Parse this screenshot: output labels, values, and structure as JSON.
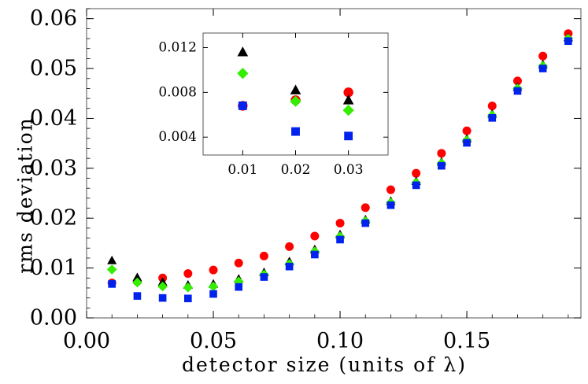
{
  "chart_data": [
    {
      "type": "scatter",
      "title": "",
      "xlabel": "detector size (units of λ)",
      "ylabel": "rms deviation",
      "xlim": [
        0.0,
        0.195
      ],
      "ylim": [
        0.0,
        0.062
      ],
      "xticks": [
        0.0,
        0.05,
        0.1,
        0.15
      ],
      "xtick_labels": [
        "0.00",
        "0.05",
        "0.10",
        "0.15"
      ],
      "yticks": [
        0.0,
        0.01,
        0.02,
        0.03,
        0.04,
        0.05,
        0.06
      ],
      "ytick_labels": [
        "0.00",
        "0.01",
        "0.02",
        "0.03",
        "0.04",
        "0.05",
        "0.06"
      ],
      "grid": false,
      "legend": "none",
      "x": [
        0.01,
        0.02,
        0.03,
        0.04,
        0.05,
        0.06,
        0.07,
        0.08,
        0.09,
        0.1,
        0.11,
        0.12,
        0.13,
        0.14,
        0.15,
        0.16,
        0.17,
        0.18,
        0.19
      ],
      "series": [
        {
          "marker": "circle",
          "color": "#ff0000",
          "values": [
            0.007,
            0.0073,
            0.008,
            0.0089,
            0.0096,
            0.011,
            0.0124,
            0.0143,
            0.0164,
            0.019,
            0.0221,
            0.0257,
            0.029,
            0.033,
            0.0375,
            0.0425,
            0.0475,
            0.0525,
            0.057
          ]
        },
        {
          "marker": "triangle",
          "color": "#000000",
          "values": [
            0.0115,
            0.0081,
            0.0072,
            0.0066,
            0.0068,
            0.0078,
            0.0091,
            0.0113,
            0.0137,
            0.0167,
            0.0197,
            0.0234,
            0.0274,
            0.0313,
            0.0359,
            0.0409,
            0.0463,
            0.0508,
            0.0562
          ]
        },
        {
          "marker": "diamond",
          "color": "#33ee00",
          "values": [
            0.0097,
            0.0071,
            0.0063,
            0.0061,
            0.0063,
            0.0073,
            0.0087,
            0.0108,
            0.0133,
            0.0163,
            0.0194,
            0.0231,
            0.0271,
            0.031,
            0.0356,
            0.0406,
            0.046,
            0.0505,
            0.056
          ]
        },
        {
          "marker": "square",
          "color": "#0022ee",
          "values": [
            0.0068,
            0.0044,
            0.004,
            0.0039,
            0.0048,
            0.0062,
            0.0082,
            0.0103,
            0.0127,
            0.0157,
            0.019,
            0.0226,
            0.0266,
            0.0305,
            0.0351,
            0.0401,
            0.0455,
            0.05,
            0.0555
          ]
        }
      ]
    },
    {
      "type": "scatter",
      "title": "",
      "xlabel": "",
      "ylabel": "",
      "xlim": [
        0.0025,
        0.0375
      ],
      "ylim": [
        0.0024,
        0.0133
      ],
      "xticks": [
        0.01,
        0.02,
        0.03
      ],
      "xtick_labels": [
        "0.01",
        "0.02",
        "0.03"
      ],
      "yticks": [
        0.004,
        0.008,
        0.012
      ],
      "ytick_labels": [
        "0.004",
        "0.008",
        "0.012"
      ],
      "grid": false,
      "legend": "none",
      "x": [
        0.01,
        0.02,
        0.03
      ],
      "series": [
        {
          "marker": "circle",
          "color": "#ff0000",
          "values": [
            0.0068,
            0.0073,
            0.008
          ]
        },
        {
          "marker": "triangle",
          "color": "#000000",
          "values": [
            0.0116,
            0.0082,
            0.0073
          ]
        },
        {
          "marker": "diamond",
          "color": "#33ee00",
          "values": [
            0.0097,
            0.0072,
            0.0064
          ]
        },
        {
          "marker": "square",
          "color": "#0022ee",
          "values": [
            0.0068,
            0.0045,
            0.0041
          ]
        }
      ]
    }
  ]
}
